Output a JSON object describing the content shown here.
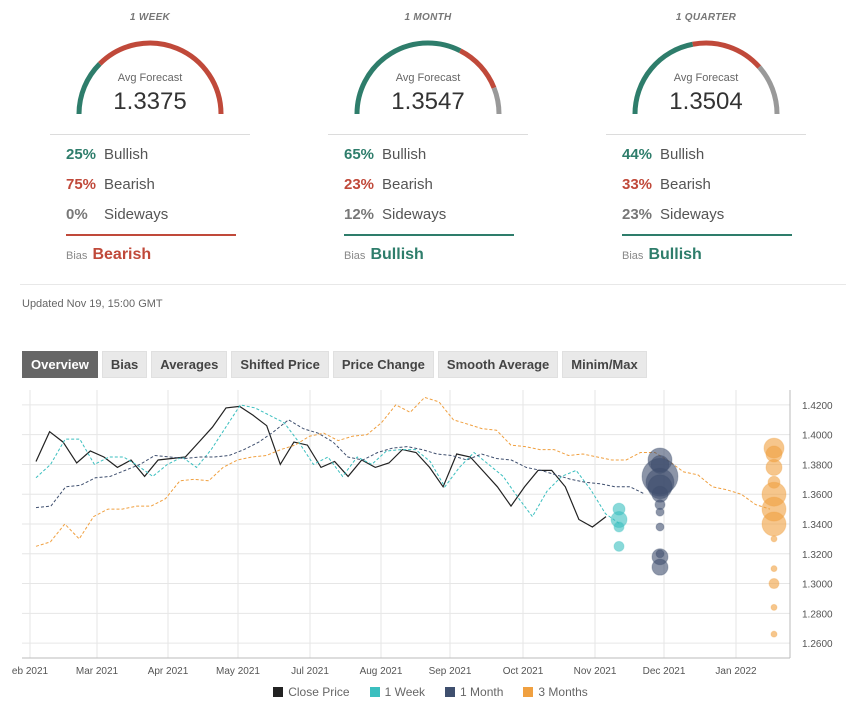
{
  "cards": [
    {
      "title": "1 WEEK",
      "avg_label": "Avg Forecast",
      "avg_value": "1.3375",
      "bullish_pct": "25%",
      "bearish_pct": "75%",
      "sideways_pct": "0%",
      "bullish_label": "Bullish",
      "bearish_label": "Bearish",
      "sideways_label": "Sideways",
      "bias_label": "Bias",
      "bias_value": "Bearish",
      "bias_color": "#c0493a",
      "gauge": {
        "bullish": 25,
        "bearish": 75,
        "sideways": 0
      }
    },
    {
      "title": "1 MONTH",
      "avg_label": "Avg Forecast",
      "avg_value": "1.3547",
      "bullish_pct": "65%",
      "bearish_pct": "23%",
      "sideways_pct": "12%",
      "bullish_label": "Bullish",
      "bearish_label": "Bearish",
      "sideways_label": "Sideways",
      "bias_label": "Bias",
      "bias_value": "Bullish",
      "bias_color": "#2e7d6b",
      "gauge": {
        "bullish": 65,
        "bearish": 23,
        "sideways": 12
      }
    },
    {
      "title": "1 QUARTER",
      "avg_label": "Avg Forecast",
      "avg_value": "1.3504",
      "bullish_pct": "44%",
      "bearish_pct": "33%",
      "sideways_pct": "23%",
      "bullish_label": "Bullish",
      "bearish_label": "Bearish",
      "sideways_label": "Sideways",
      "bias_label": "Bias",
      "bias_value": "Bullish",
      "bias_color": "#2e7d6b",
      "gauge": {
        "bullish": 44,
        "bearish": 33,
        "sideways": 23
      }
    }
  ],
  "colors": {
    "bullish": "#2e7d6b",
    "bearish": "#c0493a",
    "sideways": "#999999",
    "close": "#222222",
    "week": "#3bbfbf",
    "month": "#3f4f6e",
    "quarter": "#f0a040"
  },
  "updated": "Updated Nov 19, 15:00 GMT",
  "tabs": [
    "Overview",
    "Bias",
    "Averages",
    "Shifted Price",
    "Price Change",
    "Smooth Average",
    "Minim/Max"
  ],
  "active_tab": "Overview",
  "chart_data": {
    "type": "line",
    "x_ticks": [
      "eb 2021",
      "Mar 2021",
      "Apr 2021",
      "May 2021",
      "Jul 2021",
      "Aug 2021",
      "Sep 2021",
      "Oct 2021",
      "Nov 2021",
      "Dec 2021",
      "Jan 2022"
    ],
    "ylim": [
      1.25,
      1.43
    ],
    "y_ticks": [
      "1.4200",
      "1.4000",
      "1.3800",
      "1.3600",
      "1.3400",
      "1.3200",
      "1.3000",
      "1.2800",
      "1.2600"
    ],
    "grid": true,
    "legend_position": "bottom",
    "series": [
      {
        "name": "Close Price",
        "style": "solid",
        "color": "#222222",
        "values": [
          1.382,
          1.402,
          1.395,
          1.381,
          1.389,
          1.385,
          1.378,
          1.383,
          1.372,
          1.383,
          1.384,
          1.385,
          1.395,
          1.405,
          1.418,
          1.419,
          1.413,
          1.406,
          1.38,
          1.395,
          1.393,
          1.378,
          1.382,
          1.372,
          1.383,
          1.378,
          1.381,
          1.39,
          1.388,
          1.378,
          1.365,
          1.387,
          1.385,
          1.375,
          1.365,
          1.352,
          1.365,
          1.376,
          1.376,
          1.365,
          1.343,
          1.338,
          1.345
        ]
      },
      {
        "name": "1 Week",
        "style": "dashed",
        "color": "#3bbfbf",
        "values": [
          1.371,
          1.38,
          1.397,
          1.397,
          1.38,
          1.385,
          1.385,
          1.379,
          1.372,
          1.38,
          1.385,
          1.378,
          1.39,
          1.405,
          1.42,
          1.418,
          1.413,
          1.408,
          1.395,
          1.38,
          1.385,
          1.372,
          1.385,
          1.38,
          1.389,
          1.39,
          1.39,
          1.382,
          1.365,
          1.378,
          1.388,
          1.38,
          1.372,
          1.358,
          1.345,
          1.362,
          1.372,
          1.376,
          1.363,
          1.347,
          1.34
        ]
      },
      {
        "name": "1 Month",
        "style": "dashed",
        "color": "#3f4f6e",
        "values": [
          1.351,
          1.352,
          1.365,
          1.366,
          1.371,
          1.372,
          1.376,
          1.38,
          1.386,
          1.385,
          1.384,
          1.385,
          1.385,
          1.386,
          1.39,
          1.395,
          1.402,
          1.41,
          1.404,
          1.401,
          1.395,
          1.385,
          1.383,
          1.388,
          1.391,
          1.392,
          1.39,
          1.387,
          1.386,
          1.383,
          1.387,
          1.384,
          1.383,
          1.378,
          1.376,
          1.373,
          1.37,
          1.368,
          1.367,
          1.365,
          1.365,
          1.36
        ]
      },
      {
        "name": "3 Months",
        "style": "dashed",
        "color": "#f0a040",
        "values": [
          1.325,
          1.328,
          1.34,
          1.33,
          1.345,
          1.35,
          1.35,
          1.352,
          1.352,
          1.357,
          1.369,
          1.37,
          1.369,
          1.378,
          1.383,
          1.385,
          1.386,
          1.39,
          1.393,
          1.399,
          1.401,
          1.396,
          1.399,
          1.4,
          1.408,
          1.42,
          1.415,
          1.425,
          1.422,
          1.41,
          1.407,
          1.404,
          1.403,
          1.393,
          1.392,
          1.39,
          1.39,
          1.386,
          1.387,
          1.385,
          1.383,
          1.383,
          1.388,
          1.388,
          1.382,
          1.375,
          1.373,
          1.365,
          1.363,
          1.36,
          1.353,
          1.35
        ]
      }
    ],
    "forecast_bubbles": [
      {
        "series": "1 Week",
        "values": [
          1.35,
          1.343,
          1.338,
          1.325
        ]
      },
      {
        "series": "1 Month",
        "values": [
          1.383,
          1.38,
          1.372,
          1.368,
          1.365,
          1.36,
          1.353,
          1.348,
          1.338,
          1.32,
          1.318,
          1.311
        ]
      },
      {
        "series": "3 Months",
        "values": [
          1.391,
          1.387,
          1.378,
          1.368,
          1.36,
          1.35,
          1.34,
          1.33,
          1.31,
          1.3,
          1.284,
          1.266
        ]
      }
    ]
  }
}
